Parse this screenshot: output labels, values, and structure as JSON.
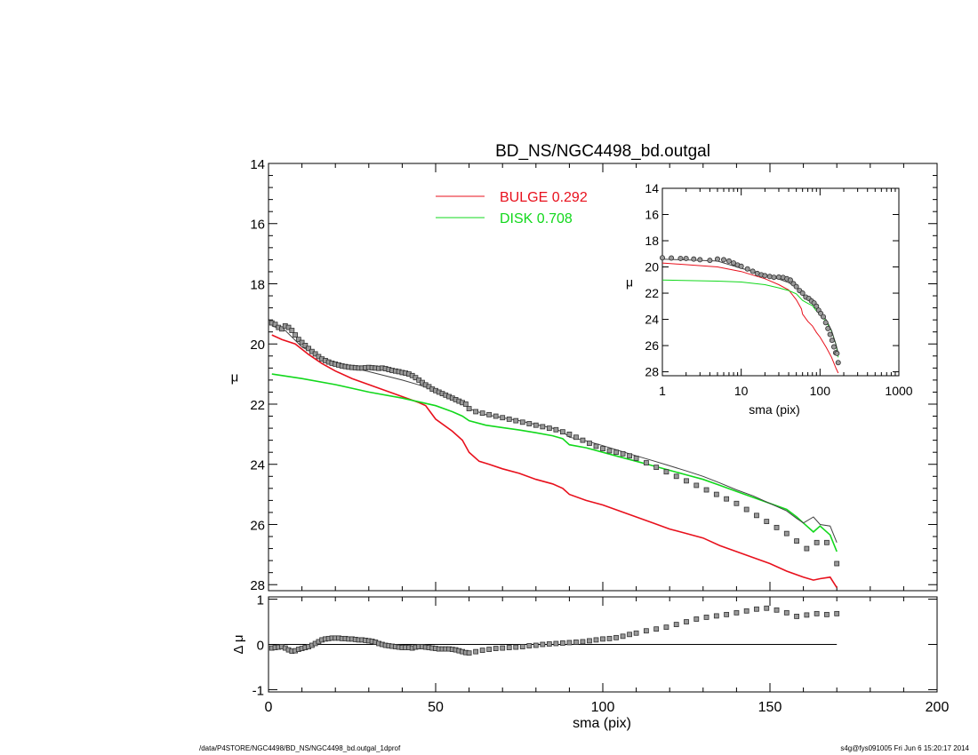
{
  "chart_data": [
    {
      "id": "main-profile",
      "type": "line",
      "title": "BD_NS/NGC4498_bd.outgal",
      "ylabel": "μ",
      "xlim": [
        0,
        200
      ],
      "ylim": [
        28.2,
        14
      ],
      "y_inverted": true,
      "yticks": [
        14,
        16,
        18,
        20,
        22,
        24,
        26,
        28
      ],
      "legend_position": "top-center",
      "legend": [
        {
          "label": "BULGE  0.292",
          "color": "#e8101c"
        },
        {
          "label": "DISK  0.708",
          "color": "#12d81c"
        }
      ],
      "series": [
        {
          "name": "BULGE",
          "style": "line",
          "color": "#e8101c",
          "x": [
            1,
            4,
            8,
            12,
            16,
            20,
            25,
            30,
            35,
            40,
            45,
            47,
            50,
            55,
            58,
            60,
            63,
            66,
            70,
            75,
            80,
            85,
            88,
            90,
            95,
            100,
            105,
            110,
            115,
            120,
            125,
            130,
            135,
            140,
            145,
            150,
            155,
            160,
            163,
            165,
            168,
            170
          ],
          "y": [
            19.7,
            19.85,
            20.0,
            20.35,
            20.65,
            20.9,
            21.15,
            21.35,
            21.55,
            21.75,
            21.95,
            22.05,
            22.5,
            22.9,
            23.2,
            23.6,
            23.9,
            24.0,
            24.15,
            24.3,
            24.5,
            24.65,
            24.8,
            25.0,
            25.2,
            25.35,
            25.55,
            25.75,
            25.95,
            26.15,
            26.3,
            26.45,
            26.7,
            26.9,
            27.1,
            27.3,
            27.55,
            27.75,
            27.85,
            27.8,
            27.75,
            28.1
          ]
        },
        {
          "name": "DISK",
          "style": "line",
          "color": "#12d81c",
          "x": [
            1,
            10,
            20,
            30,
            40,
            50,
            55,
            58,
            60,
            65,
            70,
            75,
            80,
            85,
            88,
            90,
            95,
            100,
            105,
            110,
            115,
            120,
            125,
            130,
            135,
            140,
            145,
            150,
            155,
            158,
            160,
            163,
            165,
            168,
            170
          ],
          "y": [
            21.0,
            21.15,
            21.35,
            21.6,
            21.8,
            22.05,
            22.25,
            22.4,
            22.55,
            22.7,
            22.78,
            22.86,
            22.95,
            23.05,
            23.15,
            23.35,
            23.45,
            23.6,
            23.75,
            23.9,
            24.05,
            24.2,
            24.35,
            24.5,
            24.7,
            24.9,
            25.1,
            25.3,
            25.5,
            25.75,
            25.95,
            26.25,
            26.05,
            26.35,
            26.9
          ]
        },
        {
          "name": "model",
          "style": "line",
          "color": "#404040",
          "x": [
            1,
            5,
            10,
            15,
            20,
            25,
            30,
            35,
            40,
            45,
            50,
            55,
            58,
            60,
            65,
            70,
            75,
            80,
            85,
            88,
            90,
            95,
            100,
            105,
            110,
            115,
            120,
            125,
            130,
            135,
            140,
            145,
            150,
            155,
            158,
            160,
            163,
            165,
            168,
            170
          ],
          "y": [
            19.4,
            19.55,
            20.1,
            20.4,
            20.62,
            20.78,
            20.92,
            21.06,
            21.2,
            21.36,
            21.55,
            21.75,
            21.95,
            22.15,
            22.35,
            22.45,
            22.55,
            22.68,
            22.8,
            22.92,
            23.1,
            23.22,
            23.38,
            23.55,
            23.72,
            23.88,
            24.05,
            24.22,
            24.4,
            24.62,
            24.85,
            25.05,
            25.3,
            25.55,
            25.8,
            25.95,
            25.75,
            26.0,
            26.05,
            26.6
          ]
        },
        {
          "name": "data",
          "style": "markers",
          "color": "#303030",
          "x": [
            1,
            2,
            3,
            4,
            5,
            6,
            7,
            8,
            9,
            10,
            11,
            12,
            13,
            14,
            15,
            16,
            17,
            18,
            19,
            20,
            21,
            22,
            23,
            24,
            25,
            26,
            27,
            28,
            29,
            30,
            31,
            32,
            33,
            34,
            35,
            36,
            37,
            38,
            39,
            40,
            41,
            42,
            43,
            44,
            45,
            46,
            47,
            48,
            49,
            50,
            51,
            52,
            53,
            54,
            55,
            56,
            57,
            58,
            59,
            60,
            62,
            64,
            66,
            68,
            70,
            72,
            74,
            76,
            78,
            80,
            82,
            84,
            86,
            88,
            90,
            92,
            94,
            96,
            98,
            100,
            102,
            104,
            106,
            108,
            110,
            113,
            116,
            119,
            122,
            125,
            128,
            131,
            134,
            137,
            140,
            143,
            146,
            149,
            152,
            155,
            158,
            161,
            164,
            167,
            170
          ],
          "y": [
            19.3,
            19.35,
            19.45,
            19.5,
            19.4,
            19.45,
            19.55,
            19.7,
            19.85,
            19.95,
            20.05,
            20.15,
            20.25,
            20.33,
            20.42,
            20.5,
            20.55,
            20.6,
            20.64,
            20.67,
            20.7,
            20.73,
            20.75,
            20.77,
            20.78,
            20.79,
            20.8,
            20.8,
            20.79,
            20.78,
            20.79,
            20.8,
            20.81,
            20.8,
            20.82,
            20.85,
            20.88,
            20.9,
            20.92,
            20.95,
            20.97,
            21.0,
            21.05,
            21.12,
            21.2,
            21.28,
            21.36,
            21.42,
            21.5,
            21.55,
            21.6,
            21.65,
            21.7,
            21.75,
            21.8,
            21.85,
            21.9,
            21.95,
            22.0,
            22.15,
            22.25,
            22.3,
            22.35,
            22.4,
            22.45,
            22.5,
            22.55,
            22.6,
            22.65,
            22.7,
            22.75,
            22.8,
            22.85,
            22.92,
            23.0,
            23.1,
            23.2,
            23.3,
            23.4,
            23.48,
            23.55,
            23.6,
            23.65,
            23.72,
            23.8,
            23.95,
            24.1,
            24.25,
            24.4,
            24.55,
            24.7,
            24.85,
            25.0,
            25.15,
            25.3,
            25.5,
            25.7,
            25.9,
            26.1,
            26.3,
            26.55,
            26.8,
            26.6,
            26.6,
            27.3
          ]
        }
      ]
    },
    {
      "id": "residual",
      "type": "scatter",
      "xlabel": "sma (pix)",
      "ylabel": "Δ μ",
      "xlim": [
        0,
        200
      ],
      "ylim": [
        -1.05,
        1.05
      ],
      "xticks": [
        0,
        50,
        100,
        150,
        200
      ],
      "yticks": [
        -1,
        0,
        1
      ],
      "zero_line": true,
      "x": [
        1,
        2,
        3,
        4,
        5,
        6,
        7,
        8,
        9,
        10,
        11,
        12,
        13,
        14,
        15,
        16,
        17,
        18,
        19,
        20,
        21,
        22,
        23,
        24,
        25,
        26,
        27,
        28,
        29,
        30,
        31,
        32,
        33,
        34,
        35,
        36,
        37,
        38,
        39,
        40,
        41,
        42,
        43,
        44,
        45,
        46,
        47,
        48,
        49,
        50,
        51,
        52,
        53,
        54,
        55,
        56,
        57,
        58,
        59,
        60,
        62,
        64,
        66,
        68,
        70,
        72,
        74,
        76,
        78,
        80,
        82,
        84,
        86,
        88,
        90,
        92,
        94,
        96,
        98,
        100,
        102,
        104,
        106,
        108,
        110,
        113,
        116,
        119,
        122,
        125,
        128,
        131,
        134,
        137,
        140,
        143,
        146,
        149,
        152,
        155,
        158,
        161,
        164,
        167,
        170
      ],
      "values": [
        -0.08,
        -0.07,
        -0.06,
        -0.05,
        -0.08,
        -0.12,
        -0.15,
        -0.14,
        -0.11,
        -0.09,
        -0.07,
        -0.05,
        -0.02,
        0.02,
        0.06,
        0.1,
        0.12,
        0.13,
        0.14,
        0.14,
        0.14,
        0.13,
        0.13,
        0.12,
        0.12,
        0.11,
        0.1,
        0.1,
        0.09,
        0.08,
        0.07,
        0.05,
        0.02,
        0.0,
        -0.02,
        -0.03,
        -0.04,
        -0.05,
        -0.06,
        -0.07,
        -0.07,
        -0.07,
        -0.08,
        -0.06,
        -0.05,
        -0.05,
        -0.06,
        -0.07,
        -0.08,
        -0.09,
        -0.1,
        -0.1,
        -0.1,
        -0.1,
        -0.11,
        -0.12,
        -0.14,
        -0.16,
        -0.18,
        -0.19,
        -0.16,
        -0.13,
        -0.11,
        -0.09,
        -0.08,
        -0.07,
        -0.06,
        -0.05,
        -0.03,
        -0.02,
        0.0,
        0.01,
        0.02,
        0.03,
        0.04,
        0.05,
        0.06,
        0.08,
        0.1,
        0.12,
        0.13,
        0.15,
        0.18,
        0.22,
        0.25,
        0.3,
        0.34,
        0.38,
        0.44,
        0.5,
        0.56,
        0.6,
        0.63,
        0.66,
        0.7,
        0.74,
        0.78,
        0.8,
        0.76,
        0.7,
        0.62,
        0.65,
        0.68,
        0.66,
        0.68
      ]
    },
    {
      "id": "inset-log",
      "type": "line",
      "xlabel": "sma (pix)",
      "ylabel": "μ",
      "xscale": "log",
      "xlim": [
        1,
        1000
      ],
      "ylim": [
        28.3,
        14
      ],
      "y_inverted": true,
      "xticks": [
        1,
        10,
        100,
        1000
      ],
      "yticks": [
        14,
        16,
        18,
        20,
        22,
        24,
        26,
        28
      ],
      "series": [
        {
          "name": "BULGE",
          "style": "line",
          "color": "#e8101c",
          "x": [
            1,
            5,
            10,
            20,
            30,
            40,
            50,
            58,
            60,
            70,
            80,
            90,
            100,
            120,
            140,
            160,
            170
          ],
          "y": [
            19.7,
            20.0,
            20.35,
            20.9,
            21.35,
            21.75,
            22.5,
            23.2,
            23.6,
            24.15,
            24.5,
            25.0,
            25.35,
            26.15,
            26.9,
            27.75,
            28.1
          ]
        },
        {
          "name": "DISK",
          "style": "line",
          "color": "#12d81c",
          "x": [
            1,
            5,
            10,
            20,
            30,
            40,
            50,
            60,
            70,
            80,
            90,
            100,
            120,
            140,
            160,
            170
          ],
          "y": [
            21.0,
            21.08,
            21.15,
            21.35,
            21.6,
            21.8,
            22.05,
            22.55,
            22.78,
            22.95,
            23.35,
            23.6,
            24.2,
            24.9,
            25.95,
            26.9
          ]
        },
        {
          "name": "model",
          "style": "line",
          "color": "#404040",
          "x": [
            1,
            5,
            10,
            20,
            30,
            40,
            50,
            60,
            70,
            80,
            90,
            100,
            120,
            140,
            160,
            170
          ],
          "y": [
            19.4,
            19.55,
            20.1,
            20.62,
            20.92,
            21.2,
            21.55,
            22.15,
            22.45,
            22.68,
            23.1,
            23.38,
            24.05,
            24.85,
            25.95,
            26.6
          ]
        },
        {
          "name": "data",
          "style": "markers",
          "color": "#303030",
          "x": [
            1,
            1.3,
            1.7,
            2,
            2.5,
            3,
            4,
            5,
            6,
            7,
            8,
            9,
            10,
            12,
            14,
            16,
            18,
            20,
            23,
            26,
            30,
            34,
            38,
            42,
            46,
            50,
            55,
            60,
            66,
            72,
            78,
            84,
            90,
            96,
            102,
            110,
            118,
            126,
            134,
            142,
            150,
            158,
            164,
            170
          ],
          "y": [
            19.3,
            19.32,
            19.35,
            19.35,
            19.4,
            19.45,
            19.5,
            19.4,
            19.45,
            19.55,
            19.7,
            19.85,
            19.95,
            20.15,
            20.33,
            20.5,
            20.6,
            20.67,
            20.73,
            20.79,
            20.78,
            20.8,
            20.9,
            21.0,
            21.28,
            21.5,
            21.8,
            22.0,
            22.3,
            22.4,
            22.6,
            22.75,
            23.0,
            23.3,
            23.55,
            23.8,
            24.25,
            24.7,
            25.15,
            25.6,
            26.1,
            26.55,
            26.6,
            27.3
          ]
        }
      ]
    }
  ],
  "footer": {
    "path": "/data/P4STORE/NGC4498/BD_NS/NGC4498_bd.outgal_1dprof",
    "stamp": "s4g@fys091005  Fri Jun  6 15:20:17 2014"
  }
}
